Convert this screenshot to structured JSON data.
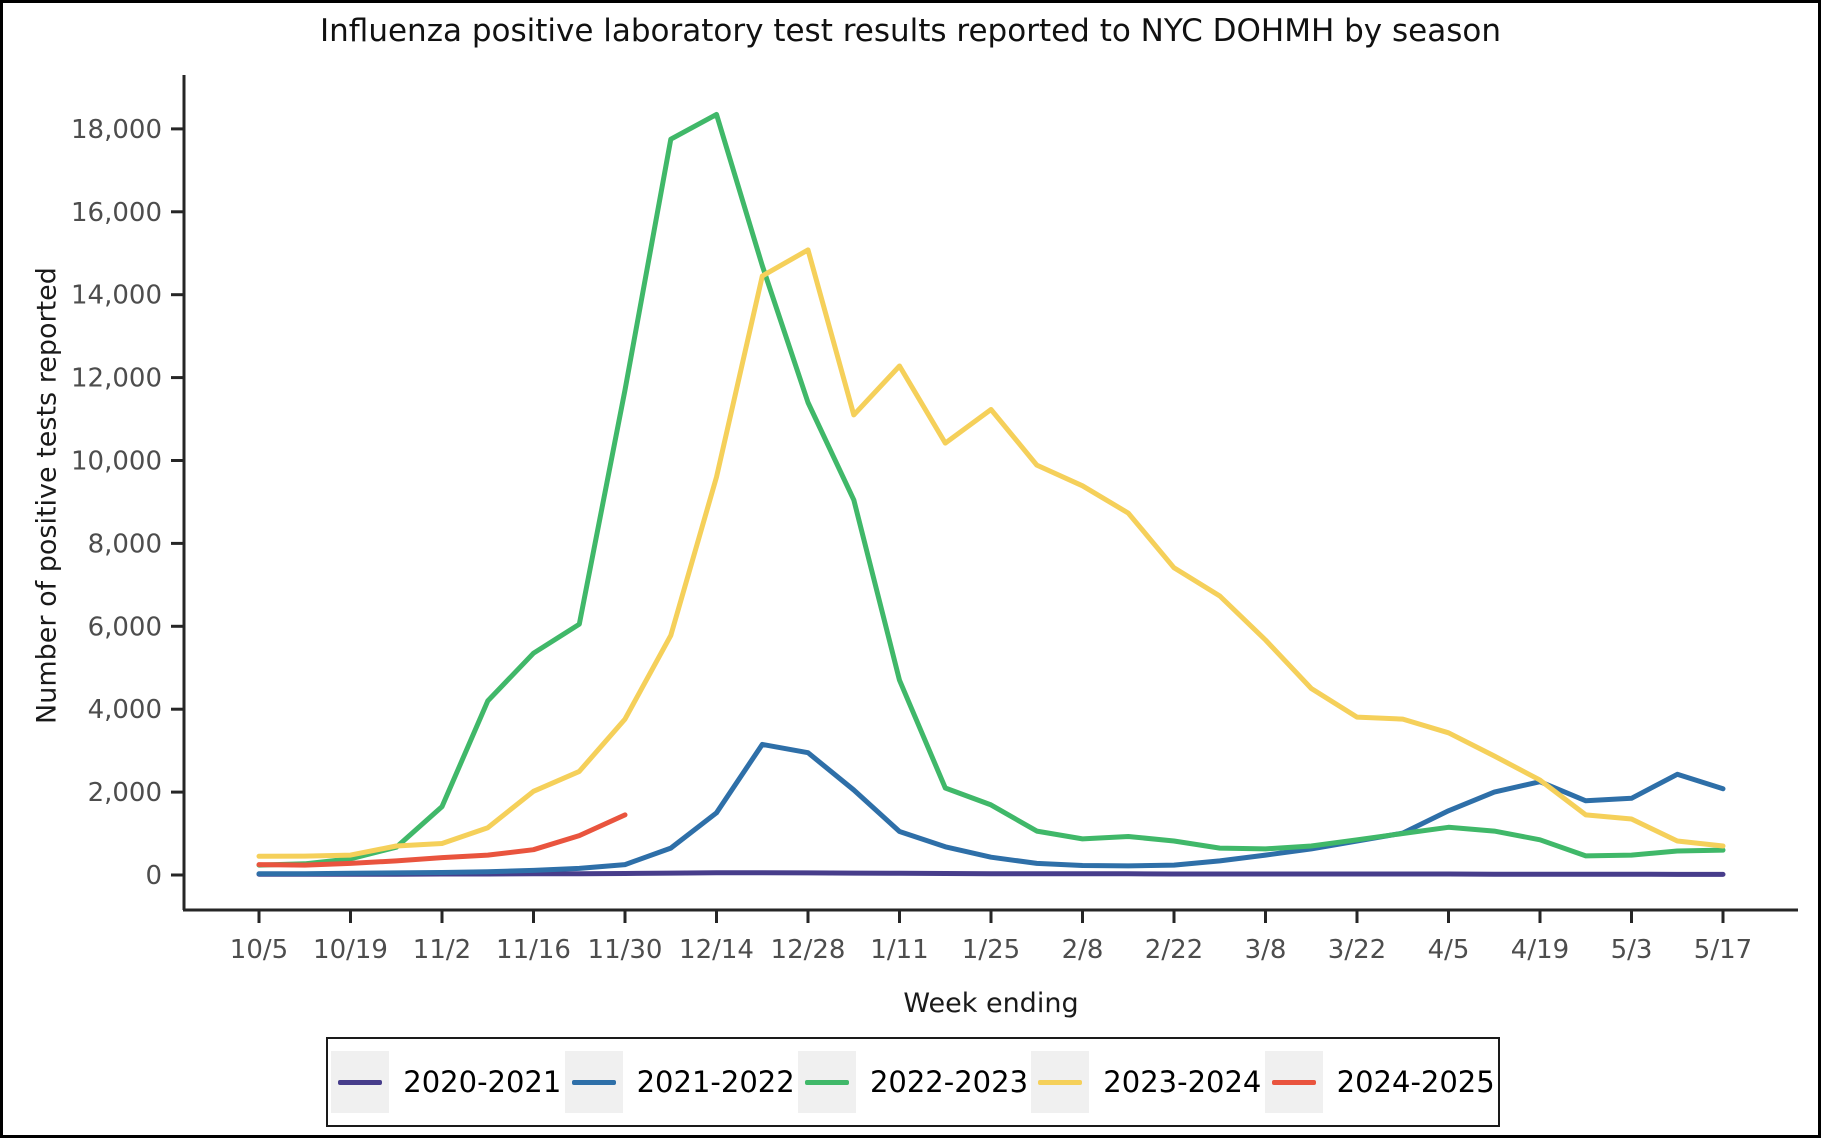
{
  "page": {
    "title": "Influenza positive laboratory test results reported to NYC DOHMH by season"
  },
  "chart_data": {
    "type": "line",
    "title": "Influenza positive laboratory test results reported to NYC DOHMH by season",
    "xlabel": "Week ending",
    "ylabel": "Number of positive tests reported",
    "x": [
      "10/5",
      "10/12",
      "10/19",
      "10/26",
      "11/2",
      "11/9",
      "11/16",
      "11/23",
      "11/30",
      "12/7",
      "12/14",
      "12/21",
      "12/28",
      "1/4",
      "1/11",
      "1/18",
      "1/25",
      "2/1",
      "2/8",
      "2/15",
      "2/22",
      "3/1",
      "3/8",
      "3/15",
      "3/22",
      "3/29",
      "4/5",
      "4/12",
      "4/19",
      "4/26",
      "5/3",
      "5/10",
      "5/17"
    ],
    "x_tick_labels": [
      "10/5",
      "10/19",
      "11/2",
      "11/16",
      "11/30",
      "12/14",
      "12/28",
      "1/11",
      "1/25",
      "2/8",
      "2/22",
      "3/8",
      "3/22",
      "4/5",
      "4/19",
      "5/3",
      "5/17"
    ],
    "x_tick_step": 2,
    "y_ticks": [
      0,
      2000,
      4000,
      6000,
      8000,
      10000,
      12000,
      14000,
      16000,
      18000
    ],
    "ylim": [
      0,
      19300
    ],
    "grid": false,
    "legend_position": "bottom",
    "axis_color": "#262626",
    "tick_label_color": "#4d4d4d",
    "series": [
      {
        "name": "2020-2021",
        "color": "#473d8b",
        "values": [
          20,
          20,
          20,
          20,
          25,
          25,
          30,
          30,
          35,
          45,
          55,
          55,
          50,
          45,
          40,
          35,
          30,
          30,
          30,
          30,
          25,
          25,
          25,
          25,
          25,
          25,
          25,
          20,
          20,
          20,
          20,
          15,
          15
        ]
      },
      {
        "name": "2021-2022",
        "color": "#2e6fa8",
        "values": [
          30,
          30,
          40,
          50,
          60,
          80,
          110,
          160,
          250,
          650,
          1500,
          3150,
          2950,
          2050,
          1050,
          680,
          430,
          280,
          230,
          220,
          240,
          340,
          480,
          630,
          820,
          1010,
          1550,
          2000,
          2250,
          1790,
          1850,
          2430,
          2080
        ]
      },
      {
        "name": "2022-2023",
        "color": "#40b869",
        "values": [
          240,
          270,
          390,
          670,
          1650,
          4200,
          5350,
          6050,
          11700,
          17750,
          18350,
          14700,
          11400,
          9050,
          4700,
          2100,
          1690,
          1060,
          870,
          930,
          820,
          650,
          630,
          700,
          850,
          1000,
          1150,
          1060,
          850,
          460,
          480,
          580,
          600
        ]
      },
      {
        "name": "2023-2024",
        "color": "#f5d05a",
        "values": [
          450,
          455,
          480,
          700,
          760,
          1140,
          2020,
          2500,
          3760,
          5780,
          9600,
          14450,
          15080,
          11100,
          12280,
          10420,
          11230,
          9890,
          9390,
          8730,
          7410,
          6730,
          5670,
          4500,
          3810,
          3760,
          3430,
          2870,
          2290,
          1450,
          1350,
          820,
          700
        ]
      },
      {
        "name": "2024-2025",
        "color": "#e9543e",
        "values": [
          250,
          240,
          280,
          340,
          420,
          480,
          610,
          950,
          1450,
          null,
          null,
          null,
          null,
          null,
          null,
          null,
          null,
          null,
          null,
          null,
          null,
          null,
          null,
          null,
          null,
          null,
          null,
          null,
          null,
          null,
          null,
          null,
          null
        ]
      }
    ]
  }
}
